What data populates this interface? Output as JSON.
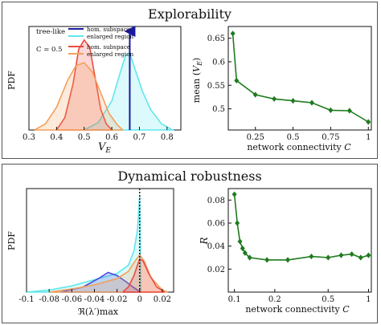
{
  "explorability": {
    "title": "Explorability",
    "pdf_label": "PDF",
    "x_label": "V_E",
    "x_ticks": [
      "0.3",
      "0.4",
      "0.5",
      "0.6",
      "0.7",
      "0.8"
    ],
    "legend": {
      "group1": "tree-like",
      "group1_items": [
        "hom. subspace",
        "enlarged region"
      ],
      "group2": "C = 0.5",
      "group2_items": [
        "hom. subspace",
        "enlarged region"
      ]
    }
  },
  "robustness": {
    "title": "Dynamical robustness",
    "pdf_label": "PDF",
    "x_label": "ℜ(λ′)max",
    "x_ticks": [
      "-0.1",
      "-0.08",
      "-0.06",
      "-0.04",
      "-0.02",
      "0",
      "0.02"
    ]
  },
  "chart_data": [
    {
      "type": "area",
      "panel": "explorability-density",
      "ylabel": "PDF",
      "xlabel": "V_E",
      "xlim": [
        0.3,
        0.85
      ],
      "series": [
        {
          "name": "tree-like hom. subspace",
          "color": "#1a1aa0",
          "x": [
            0.665,
            0.665
          ],
          "y": [
            0,
            1
          ]
        },
        {
          "name": "tree-like enlarged region",
          "color": "#5fe8ec",
          "x": [
            0.5,
            0.55,
            0.6,
            0.63,
            0.65,
            0.665,
            0.68,
            0.71,
            0.74,
            0.78,
            0.82
          ],
          "y": [
            0.0,
            0.07,
            0.28,
            0.55,
            0.72,
            0.74,
            0.62,
            0.38,
            0.2,
            0.06,
            0.0
          ]
        },
        {
          "name": "C = 0.5 hom. subspace",
          "color": "#ee4b40",
          "x": [
            0.4,
            0.43,
            0.46,
            0.48,
            0.5,
            0.52,
            0.54,
            0.56,
            0.58,
            0.6
          ],
          "y": [
            0.0,
            0.12,
            0.45,
            0.78,
            0.87,
            0.8,
            0.5,
            0.2,
            0.06,
            0.0
          ]
        },
        {
          "name": "C = 0.5 enlarged region",
          "color": "#f3a05c",
          "x": [
            0.32,
            0.36,
            0.4,
            0.44,
            0.47,
            0.5,
            0.53,
            0.56,
            0.59,
            0.62,
            0.64
          ],
          "y": [
            0.0,
            0.06,
            0.22,
            0.48,
            0.62,
            0.65,
            0.56,
            0.36,
            0.16,
            0.05,
            0.0
          ]
        }
      ]
    },
    {
      "type": "line",
      "panel": "explorability-mean",
      "xlabel": "network connectivity C",
      "ylabel": "mean (V_E)",
      "xlim": [
        0.07,
        1.02
      ],
      "ylim": [
        0.455,
        0.675
      ],
      "x_ticks": [
        "0.25",
        "0.5",
        "0.75",
        "1"
      ],
      "y_ticks": [
        "0.5",
        "0.55",
        "0.6",
        "0.65"
      ],
      "color": "#1e7b1e",
      "x": [
        0.1,
        0.125,
        0.25,
        0.375,
        0.5,
        0.625,
        0.75,
        0.875,
        1.0
      ],
      "y": [
        0.66,
        0.56,
        0.53,
        0.521,
        0.517,
        0.513,
        0.497,
        0.496,
        0.472
      ]
    },
    {
      "type": "area",
      "panel": "robustness-density",
      "ylabel": "PDF",
      "xlabel": "ℜ(λ′)max",
      "xlim": [
        -0.1,
        0.03
      ],
      "series": [
        {
          "name": "tree-like enlarged region",
          "color": "#5fe8ec",
          "x": [
            -0.1,
            -0.08,
            -0.06,
            -0.04,
            -0.02,
            -0.01,
            -0.005,
            -0.002,
            0.0,
            0.001
          ],
          "y": [
            0.0,
            0.02,
            0.06,
            0.12,
            0.18,
            0.26,
            0.4,
            0.6,
            0.94,
            0.0
          ]
        },
        {
          "name": "tree-like hom. subspace",
          "color": "#4a4adc",
          "x": [
            -0.07,
            -0.05,
            -0.035,
            -0.028,
            -0.02,
            -0.012,
            -0.006,
            -0.002,
            0.0
          ],
          "y": [
            0.0,
            0.05,
            0.14,
            0.19,
            0.16,
            0.1,
            0.05,
            0.02,
            0.0
          ]
        },
        {
          "name": "C = 0.5 enlarged region",
          "color": "#f3a05c",
          "x": [
            -0.08,
            -0.06,
            -0.04,
            -0.02,
            -0.01,
            -0.004,
            0.0,
            0.004,
            0.01,
            0.02,
            0.025
          ],
          "y": [
            0.0,
            0.03,
            0.07,
            0.13,
            0.2,
            0.3,
            0.36,
            0.3,
            0.14,
            0.02,
            0.0
          ]
        },
        {
          "name": "C = 0.5 hom. subspace",
          "color": "#ee4b40",
          "x": [
            -0.015,
            -0.01,
            -0.005,
            -0.002,
            0.0,
            0.003,
            0.008,
            0.015,
            0.022
          ],
          "y": [
            0.0,
            0.05,
            0.16,
            0.26,
            0.32,
            0.3,
            0.18,
            0.05,
            0.0
          ]
        }
      ],
      "marker_x": 0.0
    },
    {
      "type": "line",
      "panel": "robustness-R",
      "xlabel": "network connectivity C",
      "ylabel": "R",
      "xscale": "log",
      "xlim": [
        0.09,
        1.05
      ],
      "ylim": [
        0.0,
        0.09
      ],
      "x_ticks": [
        "0.1",
        "0.2",
        "0.5",
        "1"
      ],
      "y_ticks": [
        "0.02",
        "0.04",
        "0.06",
        "0.08"
      ],
      "color": "#1e7b1e",
      "x": [
        0.1,
        0.105,
        0.11,
        0.115,
        0.12,
        0.13,
        0.175,
        0.25,
        0.375,
        0.5,
        0.625,
        0.75,
        0.875,
        1.0
      ],
      "y": [
        0.085,
        0.06,
        0.044,
        0.038,
        0.034,
        0.03,
        0.028,
        0.028,
        0.031,
        0.03,
        0.032,
        0.033,
        0.03,
        0.032
      ]
    }
  ]
}
